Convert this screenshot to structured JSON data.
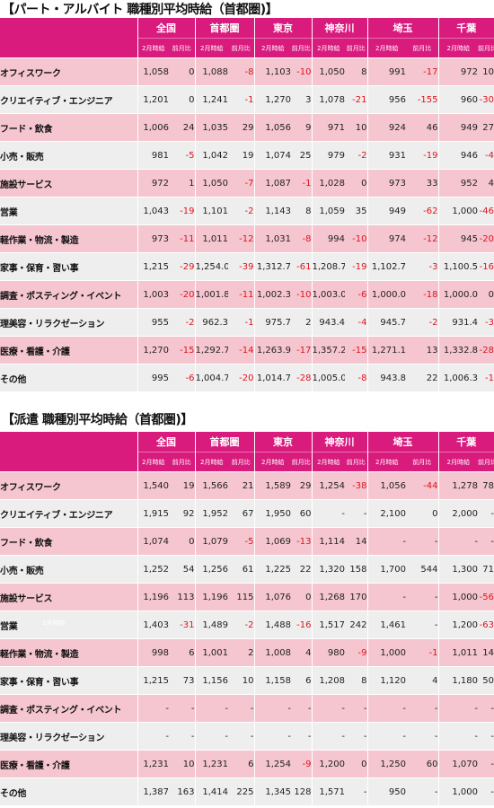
{
  "tables": [
    {
      "title": "【パート・アルバイト 職種別平均時給（首都圏)】",
      "regions": [
        "全国",
        "首都圏",
        "東京",
        "神奈川",
        "埼玉",
        "千葉"
      ],
      "subheaders": [
        "2月時給",
        "前月比"
      ],
      "rows": [
        {
          "label": "オフィスワーク",
          "cells": [
            "1,058",
            "0",
            "1,088",
            "-8",
            "1,103",
            "-10",
            "1,050",
            "8",
            "991",
            "-17",
            "972",
            "10"
          ]
        },
        {
          "label": "クリエイティブ・エンジニア",
          "cells": [
            "1,201",
            "0",
            "1,241",
            "-1",
            "1,270",
            "3",
            "1,078",
            "-21",
            "956",
            "-155",
            "960",
            "-30"
          ]
        },
        {
          "label": "フード・飲食",
          "cells": [
            "1,006",
            "24",
            "1,035",
            "29",
            "1,056",
            "9",
            "971",
            "10",
            "924",
            "46",
            "949",
            "27"
          ]
        },
        {
          "label": "小売・販売",
          "cells": [
            "981",
            "-5",
            "1,042",
            "19",
            "1,074",
            "25",
            "979",
            "-2",
            "931",
            "-19",
            "946",
            "-4"
          ]
        },
        {
          "label": "施設サービス",
          "cells": [
            "972",
            "1",
            "1,050",
            "-7",
            "1,087",
            "-1",
            "1,028",
            "0",
            "973",
            "33",
            "952",
            "4"
          ]
        },
        {
          "label": "営業",
          "cells": [
            "1,043",
            "-19",
            "1,101",
            "-2",
            "1,143",
            "8",
            "1,059",
            "35",
            "949",
            "-62",
            "1,000",
            "-46"
          ]
        },
        {
          "label": "軽作業・物流・製造",
          "cells": [
            "973",
            "-11",
            "1,011",
            "-12",
            "1,031",
            "-8",
            "994",
            "-10",
            "974",
            "-12",
            "945",
            "-20"
          ]
        },
        {
          "label": "家事・保育・習い事",
          "cells": [
            "1,215",
            "-29",
            "1,254.0",
            "-39",
            "1,312.7",
            "-61",
            "1,208.7",
            "-19",
            "1,102.7",
            "-3",
            "1,100.5",
            "-16"
          ]
        },
        {
          "label": "調査・ポスティング・イベント",
          "cells": [
            "1,003",
            "-20",
            "1,001.8",
            "-11",
            "1,002.3",
            "-10",
            "1,003.0",
            "-6",
            "1,000.0",
            "-18",
            "1,000.0",
            "0"
          ]
        },
        {
          "label": "理美容・リラクゼーション",
          "cells": [
            "955",
            "-2",
            "962.3",
            "-1",
            "975.7",
            "2",
            "943.4",
            "-4",
            "945.7",
            "-2",
            "931.4",
            "-3"
          ]
        },
        {
          "label": "医療・看護・介護",
          "cells": [
            "1,270",
            "-15",
            "1,292.7",
            "-14",
            "1,263.9",
            "-17",
            "1,357.2",
            "-15",
            "1,271.1",
            "13",
            "1,332.8",
            "-28"
          ]
        },
        {
          "label": "その他",
          "cells": [
            "995",
            "-6",
            "1,004.7",
            "-20",
            "1,014.7",
            "-28",
            "1,005.0",
            "-8",
            "943.8",
            "22",
            "1,006.3",
            "-1"
          ]
        }
      ]
    },
    {
      "title": "【派遣 職種別平均時給（首都圏)】",
      "regions": [
        "全国",
        "首都圏",
        "東京",
        "神奈川",
        "埼玉",
        "千葉"
      ],
      "subheaders": [
        "2月時給",
        "前月比"
      ],
      "rows": [
        {
          "label": "オフィスワーク",
          "cells": [
            "1,540",
            "19",
            "1,566",
            "21",
            "1,589",
            "29",
            "1,254",
            "-38",
            "1,056",
            "-44",
            "1,278",
            "78"
          ]
        },
        {
          "label": "クリエイティブ・エンジニア",
          "cells": [
            "1,915",
            "92",
            "1,952",
            "67",
            "1,950",
            "60",
            "-",
            "-",
            "2,100",
            "0",
            "2,000",
            "-"
          ]
        },
        {
          "label": "フード・飲食",
          "cells": [
            "1,074",
            "0",
            "1,079",
            "-5",
            "1,069",
            "-13",
            "1,114",
            "14",
            "-",
            "-",
            "-",
            "-"
          ]
        },
        {
          "label": "小売・販売",
          "cells": [
            "1,252",
            "54",
            "1,256",
            "61",
            "1,225",
            "22",
            "1,320",
            "158",
            "1,700",
            "544",
            "1,300",
            "71"
          ]
        },
        {
          "label": "施設サービス",
          "cells": [
            "1,196",
            "113",
            "1,196",
            "115",
            "1,076",
            "0",
            "1,268",
            "170",
            "-",
            "-",
            "1,000",
            "-56"
          ]
        },
        {
          "label": "営業",
          "cells": [
            "1,403",
            "-31",
            "1,489",
            "-2",
            "1,488",
            "-16",
            "1,517",
            "242",
            "1,461",
            "-",
            "1,200",
            "-63"
          ]
        },
        {
          "label": "軽作業・物流・製造",
          "cells": [
            "998",
            "6",
            "1,001",
            "2",
            "1,008",
            "4",
            "980",
            "-9",
            "1,000",
            "-1",
            "1,011",
            "14"
          ]
        },
        {
          "label": "家事・保育・習い事",
          "cells": [
            "1,215",
            "73",
            "1,156",
            "10",
            "1,158",
            "6",
            "1,208",
            "8",
            "1,120",
            "4",
            "1,180",
            "50"
          ]
        },
        {
          "label": "調査・ポスティング・イベント",
          "cells": [
            "-",
            "-",
            "-",
            "-",
            "-",
            "-",
            "-",
            "-",
            "-",
            "-",
            "-",
            "-"
          ]
        },
        {
          "label": "理美容・リラクゼーション",
          "cells": [
            "-",
            "-",
            "-",
            "-",
            "-",
            "-",
            "-",
            "-",
            "-",
            "-",
            "-",
            "-"
          ]
        },
        {
          "label": "医療・看護・介護",
          "cells": [
            "1,231",
            "10",
            "1,231",
            "6",
            "1,254",
            "-9",
            "1,200",
            "0",
            "1,250",
            "60",
            "1,070",
            "-"
          ]
        },
        {
          "label": "その他",
          "cells": [
            "1,387",
            "163",
            "1,414",
            "225",
            "1,345",
            "128",
            "1,571",
            "-",
            "950",
            "-",
            "1,000",
            "-"
          ]
        }
      ]
    }
  ],
  "stray_label": "2月時給",
  "colors": {
    "header": "#d81b7d",
    "row_pink": "#f5c6cf",
    "row_gray": "#eeeeee",
    "negative": "#e0141e"
  }
}
